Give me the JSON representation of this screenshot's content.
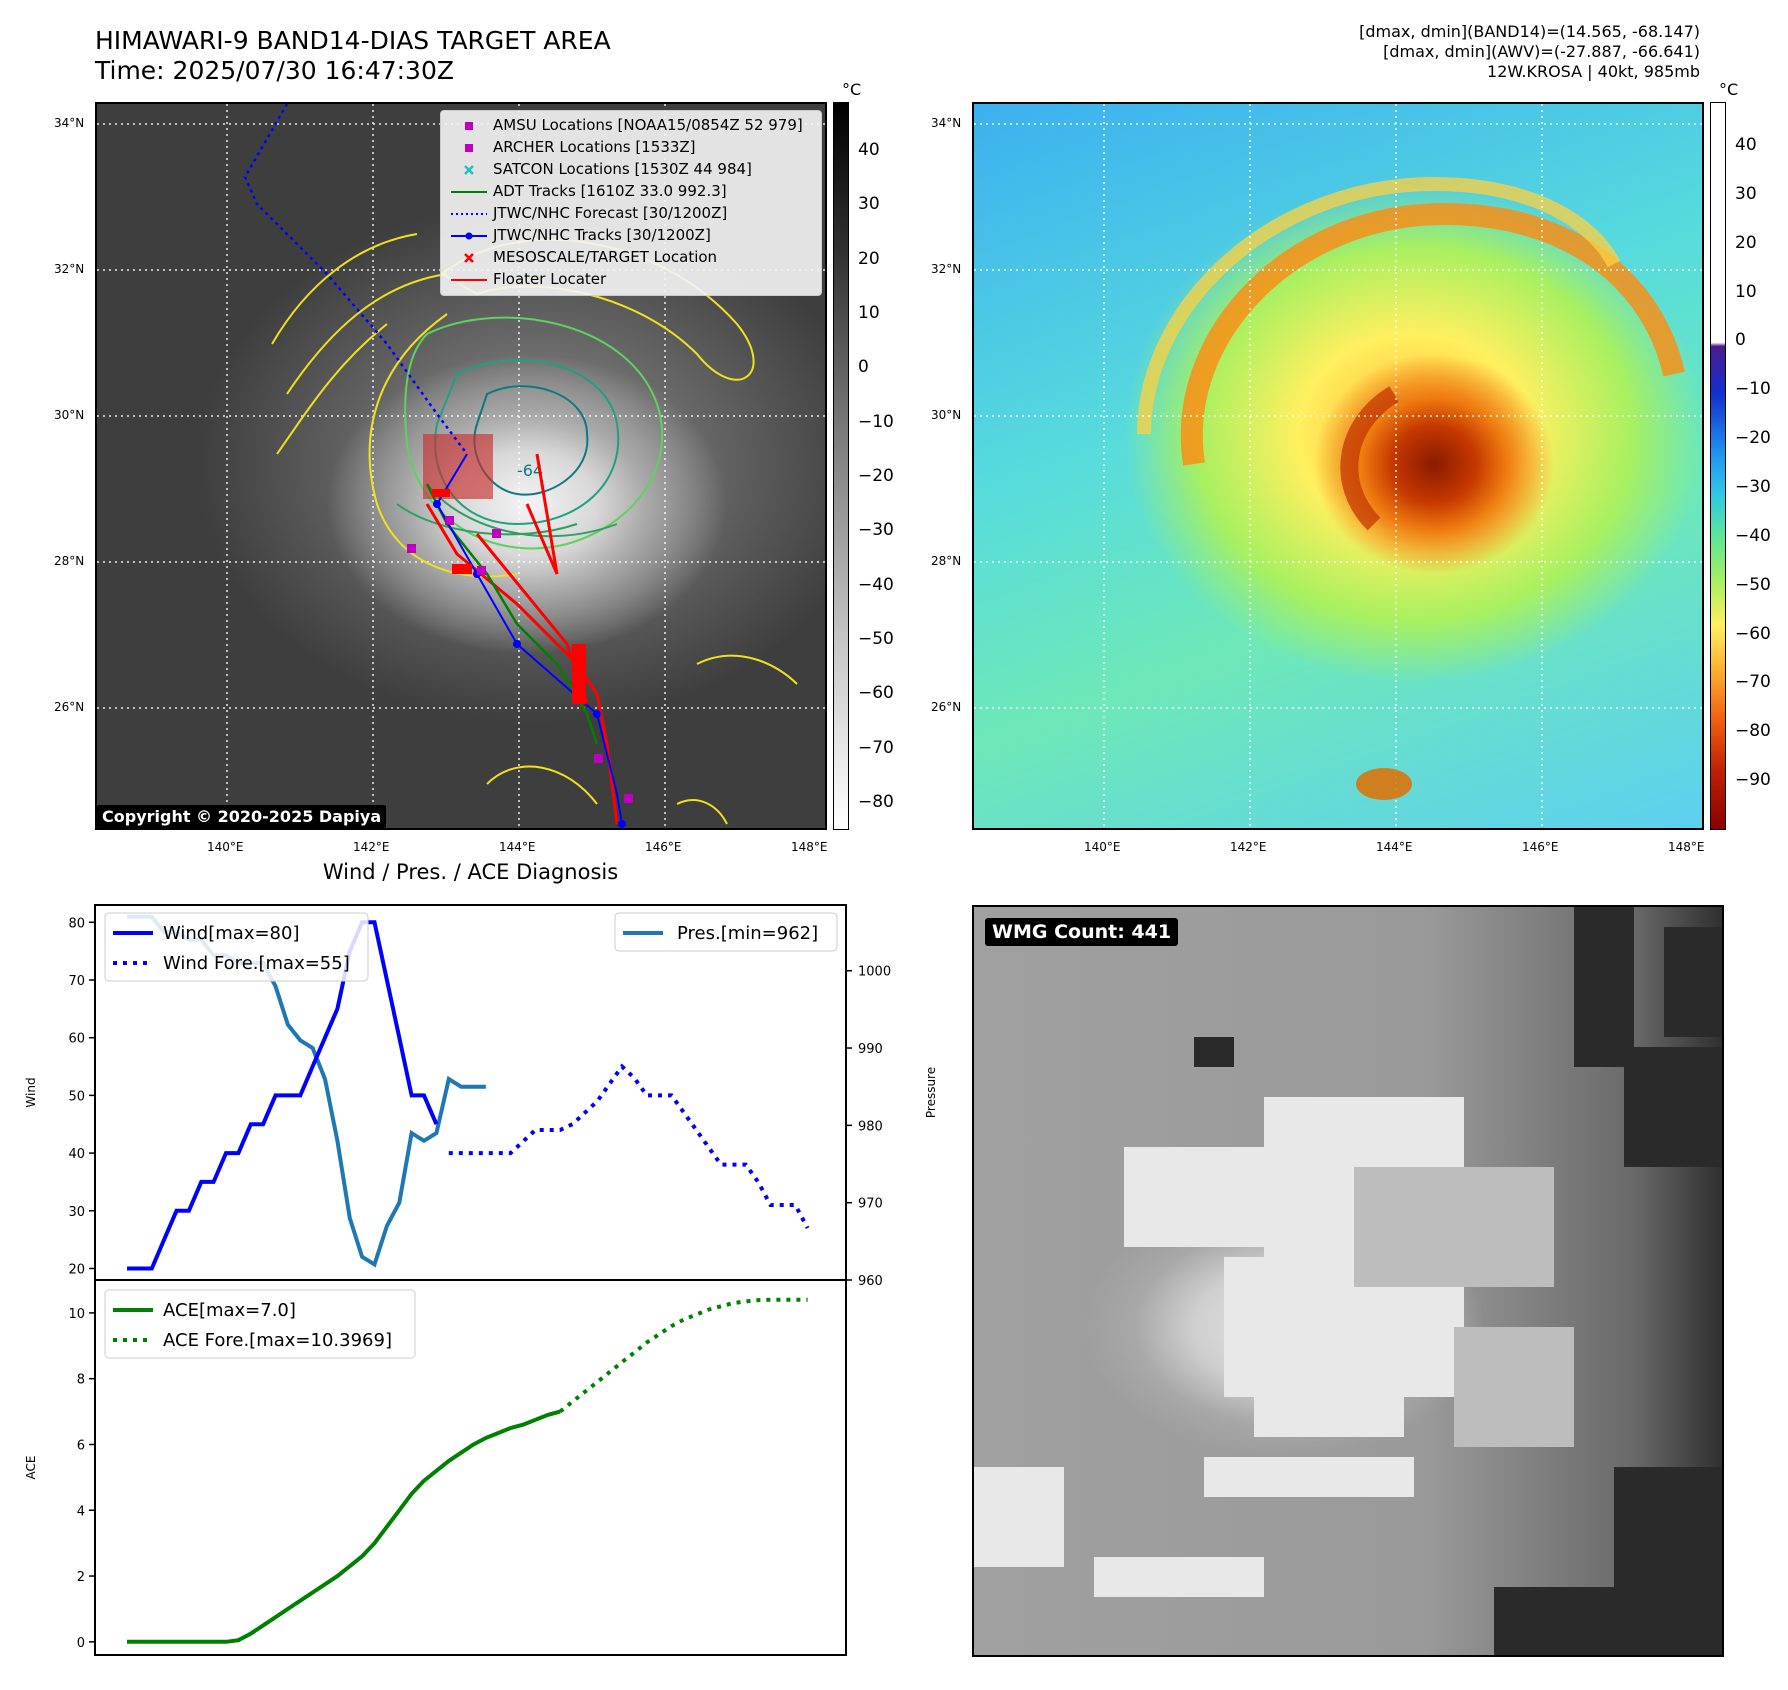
{
  "header": {
    "title_line1": "HIMAWARI-9 BAND14-DIAS TARGET AREA",
    "title_line2": "Time: 2025/07/30 16:47:30Z",
    "info_line1": "[dmax, dmin](BAND14)=(14.565, -68.147)",
    "info_line2": "[dmax, dmin](AWV)=(-27.887, -66.641)",
    "info_line3": "12W.KROSA | 40kt, 985mb"
  },
  "map_axes": {
    "lat_labels": [
      "34°N",
      "32°N",
      "30°N",
      "28°N",
      "26°N"
    ],
    "lon_labels": [
      "140°E",
      "142°E",
      "144°E",
      "146°E",
      "148°E"
    ]
  },
  "ir_panel": {
    "copyright": "Copyright © 2020-2025 Dapiya",
    "contour_label": "-64",
    "colorbar": {
      "unit": "°C",
      "ticks": [
        "40",
        "30",
        "20",
        "10",
        "0",
        "−10",
        "−20",
        "−30",
        "−40",
        "−50",
        "−60",
        "−70",
        "−80"
      ],
      "range": [
        -85,
        49
      ],
      "colormap": "grayscale-reversed"
    },
    "legend": [
      {
        "label": "AMSU Locations [NOAA15/0854Z 52 979]",
        "symbol": "square",
        "color": "#c000c0"
      },
      {
        "label": "ARCHER Locations [1533Z]",
        "symbol": "square",
        "color": "#c000c0"
      },
      {
        "label": "SATCON Locations [1530Z 44 984]",
        "symbol": "x",
        "color": "#20c0c0"
      },
      {
        "label": "ADT Tracks [1610Z 33.0 992.3]",
        "symbol": "line",
        "color": "#008000"
      },
      {
        "label": "JTWC/NHC Forecast [30/1200Z]",
        "symbol": "dotted",
        "color": "#0000ff"
      },
      {
        "label": "JTWC/NHC Tracks [30/1200Z]",
        "symbol": "line-dot",
        "color": "#0000ff"
      },
      {
        "label": "MESOSCALE/TARGET Location",
        "symbol": "x",
        "color": "#ff0000"
      },
      {
        "label": "Floater Locater",
        "symbol": "line",
        "color": "#ff0000"
      }
    ]
  },
  "awv_panel": {
    "colorbar": {
      "unit": "°C",
      "ticks": [
        "40",
        "30",
        "20",
        "10",
        "0",
        "−10",
        "−20",
        "−30",
        "−40",
        "−50",
        "−60",
        "−70",
        "−80",
        "−90"
      ],
      "range": [
        -100,
        49
      ],
      "colormap": "rainbow-below-zero"
    }
  },
  "wmg_panel": {
    "badge": "WMG Count: 441"
  },
  "colors": {
    "wind": "#0000ff",
    "pressure": "#1f77b4",
    "ace": "#008000"
  },
  "chart_data": [
    {
      "type": "line",
      "title": "Wind / Pres. / ACE Diagnosis",
      "ylabel": "Wind",
      "y2label": "Pressure",
      "ylim": [
        18,
        83
      ],
      "y2lim": [
        960,
        1008.5
      ],
      "yticks": [
        "20",
        "30",
        "40",
        "50",
        "60",
        "70",
        "80"
      ],
      "y2ticks": [
        "960",
        "970",
        "980",
        "990",
        "1000"
      ],
      "series": [
        {
          "name": "Wind[max=80]",
          "axis": "left",
          "style": "solid",
          "x": [
            0,
            1,
            2,
            3,
            4,
            5,
            6,
            7,
            8,
            9,
            10,
            11,
            12,
            13,
            14,
            15,
            16,
            17,
            18,
            19,
            20,
            21,
            22,
            23,
            24,
            25
          ],
          "values": [
            20,
            20,
            20,
            25,
            30,
            30,
            35,
            35,
            40,
            40,
            45,
            45,
            50,
            50,
            50,
            55,
            60,
            65,
            75,
            80,
            80,
            70,
            60,
            50,
            50,
            45
          ]
        },
        {
          "name": "Wind Fore.[max=55]",
          "axis": "left",
          "style": "dotted",
          "x": [
            26,
            27,
            28,
            29,
            30,
            31,
            32,
            33,
            34,
            35,
            36,
            37,
            38,
            39,
            40,
            41,
            42,
            43,
            44,
            45,
            46,
            47,
            48,
            49,
            50,
            51,
            52,
            53,
            54,
            55
          ],
          "values": [
            40,
            40,
            40,
            40,
            40,
            40,
            42,
            44,
            44,
            44,
            45,
            47,
            49,
            52,
            55,
            53,
            50,
            50,
            50,
            47,
            44,
            41,
            38,
            38,
            38,
            35,
            31,
            31,
            31,
            27
          ]
        },
        {
          "name": "Pres.[min=962]",
          "axis": "right",
          "x": [
            0,
            1,
            2,
            3,
            4,
            5,
            6,
            7,
            8,
            9,
            10,
            11,
            12,
            13,
            14,
            15,
            16,
            17,
            18,
            19,
            20,
            21,
            22,
            23,
            24,
            25,
            26,
            27,
            28,
            29
          ],
          "values": [
            1007,
            1007,
            1007,
            1005,
            1005,
            1004,
            1004,
            1002,
            1002,
            1001,
            1001,
            1001,
            998,
            993,
            991,
            990,
            986,
            978,
            968,
            963,
            962,
            967,
            970,
            979,
            978,
            979,
            986,
            985,
            985,
            985
          ]
        }
      ]
    },
    {
      "type": "line",
      "ylabel": "ACE",
      "ylim": [
        -0.4,
        11
      ],
      "yticks": [
        "0",
        "2",
        "4",
        "6",
        "8",
        "10"
      ],
      "series": [
        {
          "name": "ACE[max=7.0]",
          "style": "solid",
          "x": [
            0,
            1,
            2,
            3,
            4,
            5,
            6,
            7,
            8,
            9,
            10,
            11,
            12,
            13,
            14,
            15,
            16,
            17,
            18,
            19,
            20,
            21,
            22,
            23,
            24,
            25,
            26,
            27,
            28,
            29,
            30,
            31,
            32,
            33,
            34,
            35
          ],
          "values": [
            0,
            0,
            0,
            0,
            0,
            0,
            0,
            0,
            0,
            0.05,
            0.25,
            0.5,
            0.75,
            1.0,
            1.25,
            1.5,
            1.75,
            2.0,
            2.3,
            2.6,
            3.0,
            3.5,
            4.0,
            4.5,
            4.9,
            5.2,
            5.5,
            5.75,
            6.0,
            6.2,
            6.35,
            6.5,
            6.6,
            6.75,
            6.9,
            7.0
          ]
        },
        {
          "name": "ACE Fore.[max=10.3969]",
          "style": "dotted",
          "x": [
            35,
            36,
            37,
            38,
            39,
            40,
            41,
            42,
            43,
            44,
            45,
            46,
            47,
            48,
            49,
            50,
            51,
            52,
            53,
            54,
            55
          ],
          "values": [
            7.0,
            7.3,
            7.6,
            7.9,
            8.2,
            8.5,
            8.8,
            9.1,
            9.35,
            9.6,
            9.8,
            9.95,
            10.1,
            10.2,
            10.3,
            10.35,
            10.39,
            10.4,
            10.4,
            10.4,
            10.4
          ]
        }
      ]
    }
  ]
}
